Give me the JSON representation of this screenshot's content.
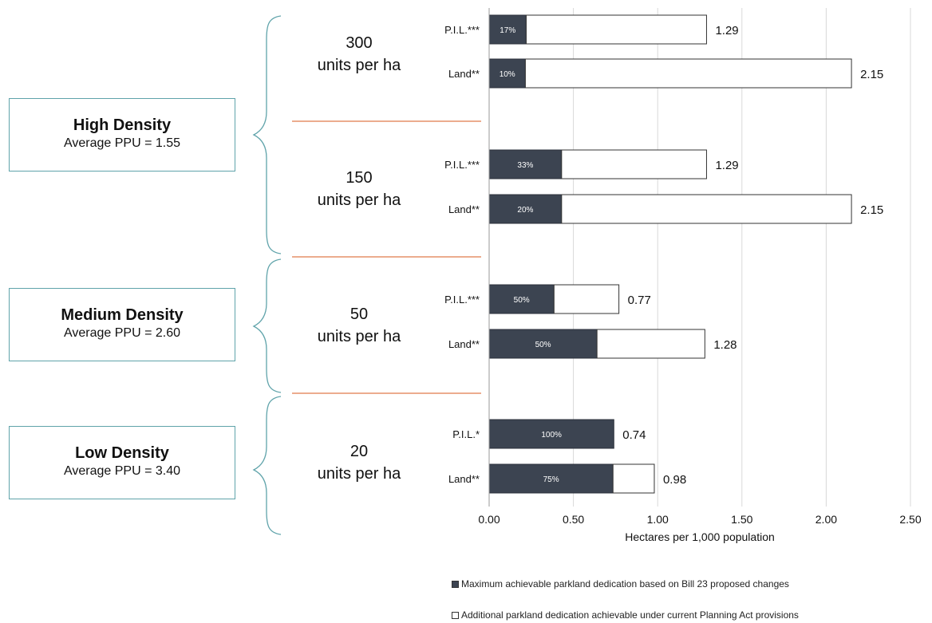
{
  "groups": [
    {
      "title": "High Density",
      "subtitle": "Average PPU = 1.55"
    },
    {
      "title": "Medium Density",
      "subtitle": "Average PPU = 2.60"
    },
    {
      "title": "Low Density",
      "subtitle": "Average PPU = 3.40"
    }
  ],
  "density_labels": [
    {
      "num": "300",
      "units": "units per ha"
    },
    {
      "num": "150",
      "units": "units per ha"
    },
    {
      "num": "50",
      "units": "units per ha"
    },
    {
      "num": "20",
      "units": "units per ha"
    }
  ],
  "colors": {
    "dark": "#3c4451",
    "light": "#ffffff",
    "brace": "#5fa3aa",
    "separator": "#e07b4a",
    "grid": "#d9d9d9"
  },
  "chart_data": {
    "type": "bar",
    "orientation": "horizontal",
    "stacked": true,
    "xlabel": "Hectares per 1,000 population",
    "xlim": [
      0,
      2.5
    ],
    "ticks": [
      0,
      0.5,
      1,
      1.5,
      2,
      2.5
    ],
    "tick_labels": [
      "0.00",
      "0.50",
      "1.00",
      "1.50",
      "2.00",
      "2.50"
    ],
    "grid": true,
    "legend_position": "bottom",
    "categories": [
      "P.I.L.***",
      "Land**",
      "P.I.L.***",
      "Land**",
      "P.I.L.***",
      "Land**",
      "P.I.L.*",
      "Land**"
    ],
    "series": [
      {
        "name": "Maximum achievable parkland dedication based on Bill 23 proposed changes",
        "color": "#3c4451",
        "values": [
          0.22,
          0.215,
          0.43,
          0.43,
          0.385,
          0.64,
          0.74,
          0.735
        ]
      },
      {
        "name": "Additional parkland dedication achievable under current Planning Act provisions",
        "color": "#ffffff",
        "values": [
          1.07,
          1.935,
          0.86,
          1.72,
          0.385,
          0.64,
          0,
          0.245
        ]
      }
    ],
    "pct_labels": [
      "17%",
      "10%",
      "33%",
      "20%",
      "50%",
      "50%",
      "100%",
      "75%"
    ],
    "total_labels": [
      "1.29",
      "2.15",
      "1.29",
      "2.15",
      "0.77",
      "1.28",
      "0.74",
      "0.98"
    ]
  }
}
